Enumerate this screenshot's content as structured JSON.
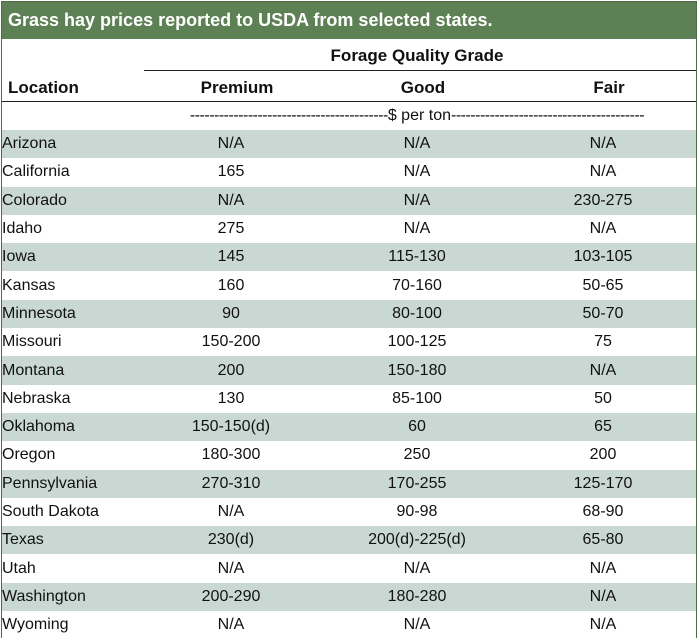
{
  "title": "Grass hay prices reported to USDA from selected states.",
  "group_header": "Forage Quality Grade",
  "columns": {
    "location": "Location",
    "premium": "Premium",
    "good": "Good",
    "fair": "Fair"
  },
  "unit_left": "-----------------------------------------",
  "unit_label": "$ per ton",
  "unit_right": "----------------------------------------",
  "colors": {
    "title_bg": "#5d8154",
    "title_text": "#ffffff",
    "row_shade": "#c9d8d3"
  },
  "rows": [
    {
      "location": "Arizona",
      "premium": "N/A",
      "good": "N/A",
      "fair": "N/A"
    },
    {
      "location": "California",
      "premium": "165",
      "good": "N/A",
      "fair": "N/A"
    },
    {
      "location": "Colorado",
      "premium": "N/A",
      "good": "N/A",
      "fair": "230-275"
    },
    {
      "location": "Idaho",
      "premium": "275",
      "good": "N/A",
      "fair": "N/A"
    },
    {
      "location": "Iowa",
      "premium": "145",
      "good": "115-130",
      "fair": "103-105"
    },
    {
      "location": "Kansas",
      "premium": "160",
      "good": "70-160",
      "fair": "50-65"
    },
    {
      "location": "Minnesota",
      "premium": "90",
      "good": "80-100",
      "fair": "50-70"
    },
    {
      "location": "Missouri",
      "premium": "150-200",
      "good": "100-125",
      "fair": "75"
    },
    {
      "location": "Montana",
      "premium": "200",
      "good": "150-180",
      "fair": "N/A"
    },
    {
      "location": "Nebraska",
      "premium": "130",
      "good": "85-100",
      "fair": "50"
    },
    {
      "location": "Oklahoma",
      "premium": "150-150(d)",
      "good": "60",
      "fair": "65"
    },
    {
      "location": "Oregon",
      "premium": "180-300",
      "good": "250",
      "fair": "200"
    },
    {
      "location": "Pennsylvania",
      "premium": "270-310",
      "good": "170-255",
      "fair": "125-170"
    },
    {
      "location": "South Dakota",
      "premium": "N/A",
      "good": "90-98",
      "fair": "68-90"
    },
    {
      "location": "Texas",
      "premium": "230(d)",
      "good": "200(d)-225(d)",
      "fair": "65-80"
    },
    {
      "location": "Utah",
      "premium": "N/A",
      "good": "N/A",
      "fair": "N/A"
    },
    {
      "location": "Washington",
      "premium": "200-290",
      "good": "180-280",
      "fair": "N/A"
    },
    {
      "location": "Wyoming",
      "premium": "N/A",
      "good": "N/A",
      "fair": "N/A"
    }
  ]
}
